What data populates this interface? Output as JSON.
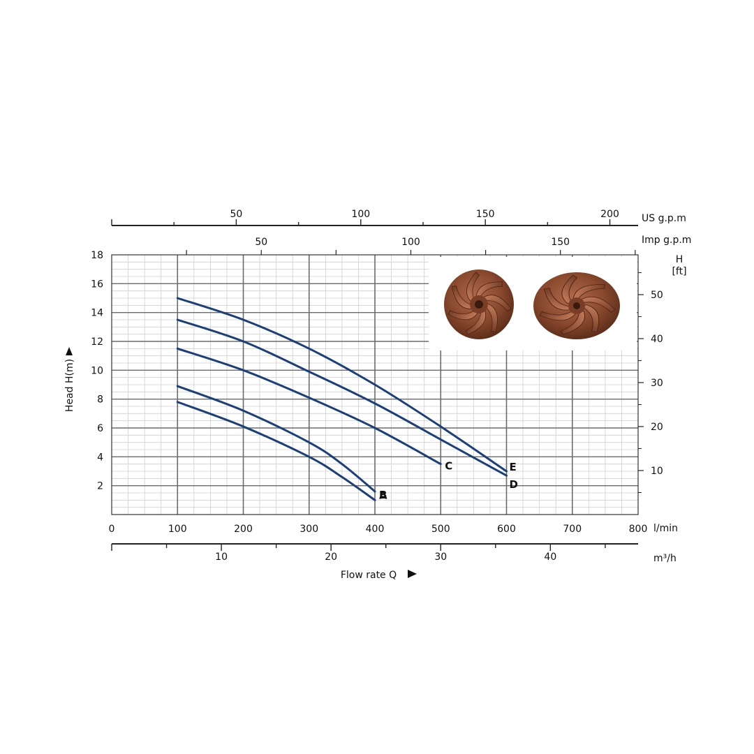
{
  "chart_data": {
    "type": "line",
    "ylabel": "Head H(m)",
    "xlabel": "Flow rate Q",
    "x_unit_lmin": "l/min",
    "x_unit_m3h": "m³/h",
    "x_unit_usgpm": "US g.p.m",
    "x_unit_impgpm": "Imp g.p.m",
    "y_unit_ft": "H\n[ft]",
    "xlim": [
      0,
      800
    ],
    "ylim": [
      0,
      18
    ],
    "x_ticks": [
      0,
      100,
      200,
      300,
      400,
      500,
      600,
      700,
      800
    ],
    "y_ticks": [
      2,
      4,
      6,
      8,
      10,
      12,
      14,
      16,
      18
    ],
    "ft_ticks": [
      10,
      20,
      30,
      40,
      50
    ],
    "m3h_ticks": [
      10,
      20,
      30,
      40
    ],
    "usgpm_ticks": [
      50,
      100,
      150,
      200
    ],
    "impgpm_ticks": [
      50,
      100,
      150
    ],
    "grid": true,
    "curve_color": "#1a3f7a",
    "series": [
      {
        "name": "A",
        "x": [
          100,
          200,
          300,
          350,
          400
        ],
        "y": [
          7.8,
          6.1,
          4.0,
          2.6,
          1.0
        ]
      },
      {
        "name": "B",
        "x": [
          100,
          200,
          300,
          350,
          400
        ],
        "y": [
          8.9,
          7.2,
          5.0,
          3.5,
          1.6
        ]
      },
      {
        "name": "C",
        "x": [
          100,
          200,
          300,
          400,
          500
        ],
        "y": [
          11.5,
          10.0,
          8.1,
          6.0,
          3.5
        ]
      },
      {
        "name": "D",
        "x": [
          100,
          200,
          300,
          400,
          500,
          600
        ],
        "y": [
          13.5,
          12.0,
          9.9,
          7.7,
          5.2,
          2.7
        ]
      },
      {
        "name": "E",
        "x": [
          100,
          200,
          300,
          400,
          500,
          600
        ],
        "y": [
          15.0,
          13.5,
          11.5,
          9.0,
          6.1,
          3.0
        ]
      }
    ]
  },
  "photo": {
    "name": "impeller-photos"
  }
}
